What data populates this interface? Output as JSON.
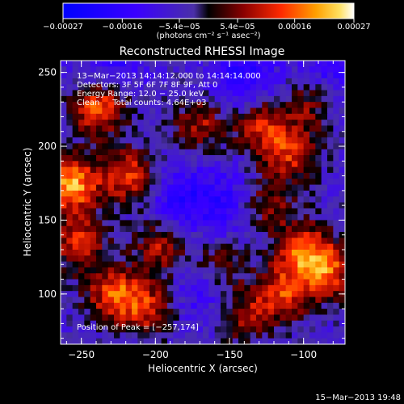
{
  "chart_data": {
    "type": "heatmap",
    "title": "Reconstructed RHESSI Image",
    "xlabel": "Heliocentric X (arcsec)",
    "ylabel": "Heliocentric Y (arcsec)",
    "xlim": [
      -264,
      -72
    ],
    "ylim": [
      66,
      258
    ],
    "x_ticks": [
      -250,
      -200,
      -150,
      -100
    ],
    "y_ticks": [
      100,
      150,
      200,
      250
    ],
    "x_tick_labels": [
      "−250",
      "−200",
      "−150",
      "−100"
    ],
    "y_tick_labels": [
      "100",
      "150",
      "200",
      "250"
    ],
    "colorbar": {
      "range": [
        -0.00027,
        0.00027
      ],
      "ticks": [
        -0.00027,
        -0.00016,
        -5.4e-05,
        5.4e-05,
        0.00016,
        0.00027
      ],
      "tick_labels": [
        "−0.00027",
        "−0.00016",
        "−5.4e−05",
        "5.4e−05",
        "0.00016",
        "0.00027"
      ],
      "unit_label": "(photons cm⁻² s⁻¹ asec⁻²)"
    },
    "annotations": {
      "line1": "13−Mar−2013 14:14:12.000 to 14:14:14.000",
      "line2": "Detectors: 3F 5F 6F 7F 8F 9F, Att 0",
      "line3": "Energy Range: 12.0 − 25.0 keV",
      "line4": "Clean     Total counts: 4.64E+03",
      "peak": "Position of Peak = [−257,174]"
    },
    "timestamp": "15−Mar−2013 19:48",
    "hot_spots": [
      {
        "x": -257,
        "y": 174,
        "amp": 0.00027
      },
      {
        "x": -238,
        "y": 226,
        "amp": 0.00022
      },
      {
        "x": -218,
        "y": 180,
        "amp": 0.00019
      },
      {
        "x": -252,
        "y": 135,
        "amp": 0.00018
      },
      {
        "x": -196,
        "y": 132,
        "amp": 0.00015
      },
      {
        "x": -228,
        "y": 100,
        "amp": 0.0002
      },
      {
        "x": -205,
        "y": 90,
        "amp": 0.00016
      },
      {
        "x": -170,
        "y": 215,
        "amp": 0.00014
      },
      {
        "x": -128,
        "y": 215,
        "amp": 0.00016
      },
      {
        "x": -110,
        "y": 195,
        "amp": 0.00017
      },
      {
        "x": -95,
        "y": 230,
        "amp": 0.00012
      },
      {
        "x": -125,
        "y": 160,
        "amp": 0.00013
      },
      {
        "x": -100,
        "y": 130,
        "amp": 0.00019
      },
      {
        "x": -85,
        "y": 115,
        "amp": 0.0002
      },
      {
        "x": -115,
        "y": 100,
        "amp": 0.00018
      },
      {
        "x": -140,
        "y": 85,
        "amp": 0.00012
      },
      {
        "x": -155,
        "y": 120,
        "amp": 0.0001
      }
    ],
    "cold_spots": [
      {
        "x": -182,
        "y": 165,
        "amp": 0.00011
      },
      {
        "x": -150,
        "y": 160,
        "amp": 9e-05
      },
      {
        "x": -140,
        "y": 245,
        "amp": 0.00012
      },
      {
        "x": -80,
        "y": 250,
        "amp": 0.0001
      },
      {
        "x": -230,
        "y": 255,
        "amp": 9e-05
      },
      {
        "x": -170,
        "y": 100,
        "amp": 7e-05
      }
    ]
  }
}
